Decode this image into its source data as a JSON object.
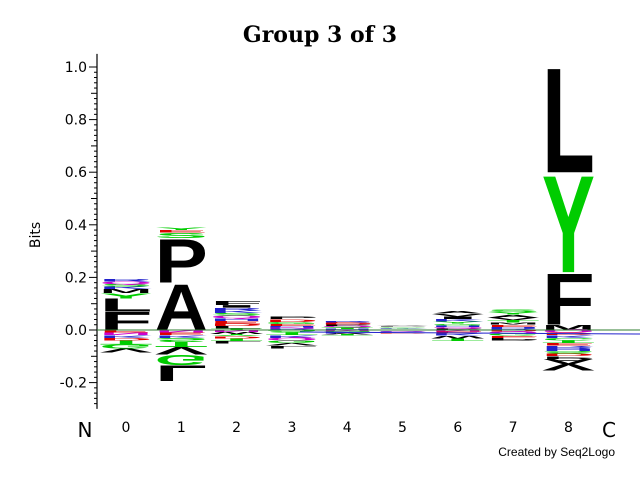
{
  "chart_data": {
    "type": "sequence-logo",
    "title": "Group 3 of 3",
    "ylabel": "Bits",
    "ylim": [
      -0.3,
      1.05
    ],
    "yticks": [
      "1.0",
      "0.8",
      "0.6",
      "0.4",
      "0.2",
      "0.0",
      "-0.2"
    ],
    "positions": [
      "0",
      "1",
      "2",
      "3",
      "4",
      "5",
      "6",
      "7",
      "8"
    ],
    "n_terminus": "N",
    "c_terminus": "C",
    "colors": {
      "L": "#000000",
      "P": "#000000",
      "A": "#000000",
      "F": "#000000",
      "V": "#000000",
      "I": "#000000",
      "M": "#000000",
      "W": "#000000",
      "Y": "#00cc00",
      "S": "#00cc00",
      "G": "#00cc00",
      "T": "#00cc00",
      "C": "#00cc00",
      "H": "#2222cc",
      "K": "#2222cc",
      "R": "#2222cc",
      "Q": "#cc00cc",
      "N": "#cc00cc",
      "D": "#dd0000",
      "E": "#dd0000"
    },
    "columns": [
      {
        "position": "0",
        "positive": [
          [
            "F",
            0.07
          ],
          [
            "L",
            0.05
          ],
          [
            "Y",
            0.02
          ],
          [
            "M",
            0.015
          ],
          [
            "K",
            0.01
          ],
          [
            "S",
            0.01
          ],
          [
            "Q",
            0.01
          ],
          [
            "R",
            0.01
          ]
        ],
        "negative": [
          [
            "E",
            0.01
          ],
          [
            "N",
            0.01
          ],
          [
            "K",
            0.01
          ],
          [
            "D",
            0.01
          ],
          [
            "T",
            0.015
          ],
          [
            "G",
            0.015
          ],
          [
            "V",
            0.015
          ]
        ]
      },
      {
        "position": "1",
        "positive": [
          [
            "A",
            0.18
          ],
          [
            "P",
            0.17
          ],
          [
            "S",
            0.02
          ],
          [
            "E",
            0.01
          ],
          [
            "Y",
            0.01
          ]
        ],
        "negative": [
          [
            "N",
            0.01
          ],
          [
            "E",
            0.01
          ],
          [
            "K",
            0.01
          ],
          [
            "S",
            0.015
          ],
          [
            "T",
            0.02
          ],
          [
            "V",
            0.03
          ],
          [
            "G",
            0.04
          ],
          [
            "L",
            0.06
          ]
        ]
      },
      {
        "position": "2",
        "positive": [
          [
            "T",
            0.005
          ],
          [
            "L",
            0.01
          ],
          [
            "D",
            0.01
          ],
          [
            "E",
            0.01
          ],
          [
            "H",
            0.01
          ],
          [
            "Q",
            0.01
          ],
          [
            "S",
            0.01
          ],
          [
            "K",
            0.01
          ],
          [
            "R",
            0.01
          ],
          [
            "I",
            0.01
          ],
          [
            "F",
            0.015
          ]
        ],
        "negative": [
          [
            "N",
            0.008
          ],
          [
            "W",
            0.008
          ],
          [
            "Y",
            0.008
          ],
          [
            "D",
            0.008
          ],
          [
            "T",
            0.01
          ],
          [
            "L",
            0.01
          ]
        ]
      },
      {
        "position": "3",
        "positive": [
          [
            "R",
            0.005
          ],
          [
            "N",
            0.005
          ],
          [
            "H",
            0.005
          ],
          [
            "E",
            0.008
          ],
          [
            "G",
            0.008
          ],
          [
            "D",
            0.01
          ],
          [
            "P",
            0.01
          ]
        ],
        "negative": [
          [
            "S",
            0.01
          ],
          [
            "T",
            0.01
          ],
          [
            "K",
            0.01
          ],
          [
            "Q",
            0.01
          ],
          [
            "G",
            0.01
          ],
          [
            "V",
            0.01
          ],
          [
            "L",
            0.01
          ]
        ]
      },
      {
        "position": "4",
        "positive": [
          [
            "H",
            0.004
          ],
          [
            "T",
            0.004
          ],
          [
            "S",
            0.004
          ],
          [
            "Q",
            0.004
          ],
          [
            "P",
            0.004
          ],
          [
            "D",
            0.004
          ],
          [
            "E",
            0.004
          ],
          [
            "R",
            0.004
          ]
        ],
        "negative": [
          [
            "N",
            0.004
          ],
          [
            "G",
            0.004
          ],
          [
            "K",
            0.004
          ],
          [
            "V",
            0.004
          ],
          [
            "T",
            0.004
          ]
        ]
      },
      {
        "position": "5",
        "positive": [
          [
            "N",
            0.003
          ],
          [
            "Y",
            0.003
          ],
          [
            "K",
            0.003
          ],
          [
            "G",
            0.003
          ],
          [
            "P",
            0.003
          ],
          [
            "V",
            0.003
          ]
        ],
        "negative": [
          [
            "E",
            0.003
          ],
          [
            "R",
            0.003
          ],
          [
            "Q",
            0.003
          ],
          [
            "N",
            0.003
          ],
          [
            "D",
            0.003
          ]
        ]
      },
      {
        "position": "6",
        "positive": [
          [
            "P",
            0.006
          ],
          [
            "Q",
            0.006
          ],
          [
            "H",
            0.006
          ],
          [
            "G",
            0.006
          ],
          [
            "Y",
            0.008
          ],
          [
            "K",
            0.01
          ],
          [
            "I",
            0.01
          ],
          [
            "V",
            0.01
          ],
          [
            "A",
            0.01
          ]
        ],
        "negative": [
          [
            "N",
            0.006
          ],
          [
            "E",
            0.008
          ],
          [
            "K",
            0.008
          ],
          [
            "W",
            0.01
          ],
          [
            "T",
            0.01
          ]
        ]
      },
      {
        "position": "7",
        "positive": [
          [
            "R",
            0.006
          ],
          [
            "H",
            0.006
          ],
          [
            "E",
            0.008
          ],
          [
            "M",
            0.008
          ],
          [
            "T",
            0.01
          ],
          [
            "V",
            0.01
          ],
          [
            "A",
            0.01
          ],
          [
            "Y",
            0.01
          ],
          [
            "S",
            0.01
          ]
        ],
        "negative": [
          [
            "D",
            0.006
          ],
          [
            "Q",
            0.008
          ],
          [
            "G",
            0.008
          ],
          [
            "E",
            0.008
          ],
          [
            "P",
            0.01
          ]
        ]
      },
      {
        "position": "8",
        "positive": [
          [
            "M",
            0.02
          ],
          [
            "F",
            0.2
          ],
          [
            "Y",
            0.38
          ],
          [
            "L",
            0.41
          ]
        ],
        "negative": [
          [
            "Q",
            0.01
          ],
          [
            "D",
            0.01
          ],
          [
            "K",
            0.01
          ],
          [
            "C",
            0.01
          ],
          [
            "T",
            0.01
          ],
          [
            "E",
            0.01
          ],
          [
            "R",
            0.01
          ],
          [
            "H",
            0.01
          ],
          [
            "S",
            0.01
          ],
          [
            "D",
            0.01
          ],
          [
            "P",
            0.01
          ],
          [
            "A",
            0.02
          ],
          [
            "V",
            0.025
          ]
        ]
      }
    ]
  },
  "credit": "Created by Seq2Logo"
}
